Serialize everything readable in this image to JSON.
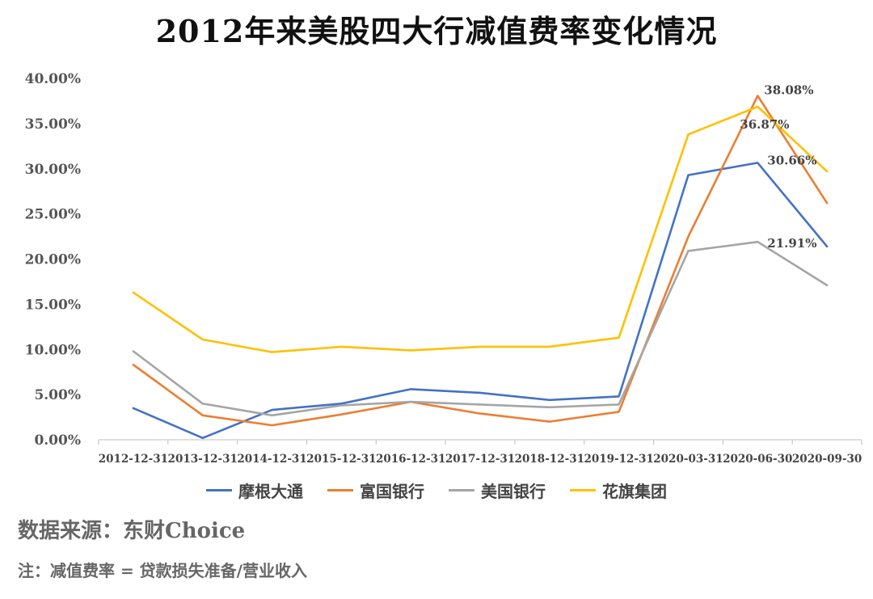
{
  "title": "2012年来美股四大行减值费率变化情况",
  "source": "数据来源：东财Choice",
  "note": "注：减值费率 = 贷款损失准备/营业收入",
  "chart_data": {
    "type": "line",
    "title": "2012年来美股四大行减值费率变化情况",
    "categories": [
      "2012-12-31",
      "2013-12-31",
      "2014-12-31",
      "2015-12-31",
      "2016-12-31",
      "2017-12-31",
      "2018-12-31",
      "2019-12-31",
      "2020-03-31",
      "2020-06-30",
      "2020-09-30"
    ],
    "yticks": [
      "0.00%",
      "5.00%",
      "10.00%",
      "15.00%",
      "20.00%",
      "25.00%",
      "30.00%",
      "35.00%",
      "40.00%"
    ],
    "ylim": [
      0,
      40
    ],
    "grid": false,
    "legend_position": "bottom",
    "series": [
      {
        "name": "摩根大通",
        "color": "#4472C4",
        "values": [
          3.5,
          0.2,
          3.3,
          4.0,
          5.6,
          5.2,
          4.4,
          4.8,
          29.3,
          30.66,
          21.4
        ]
      },
      {
        "name": "富国银行",
        "color": "#ED7D31",
        "values": [
          8.3,
          2.7,
          1.6,
          2.8,
          4.2,
          2.9,
          2.0,
          3.1,
          22.5,
          38.08,
          26.2
        ]
      },
      {
        "name": "美国银行",
        "color": "#A5A5A5",
        "values": [
          9.8,
          4.0,
          2.7,
          3.8,
          4.2,
          3.9,
          3.6,
          3.9,
          20.9,
          21.91,
          17.1
        ]
      },
      {
        "name": "花旗集团",
        "color": "#FFC000",
        "values": [
          16.3,
          11.1,
          9.7,
          10.3,
          9.9,
          10.3,
          10.3,
          11.3,
          33.8,
          36.87,
          29.7
        ]
      }
    ],
    "annotations": [
      {
        "text": "38.08%",
        "series": 1,
        "index": 9
      },
      {
        "text": "36.87%",
        "series": 3,
        "index": 9
      },
      {
        "text": "30.66%",
        "series": 0,
        "index": 9
      },
      {
        "text": "21.91%",
        "series": 2,
        "index": 9
      }
    ]
  }
}
